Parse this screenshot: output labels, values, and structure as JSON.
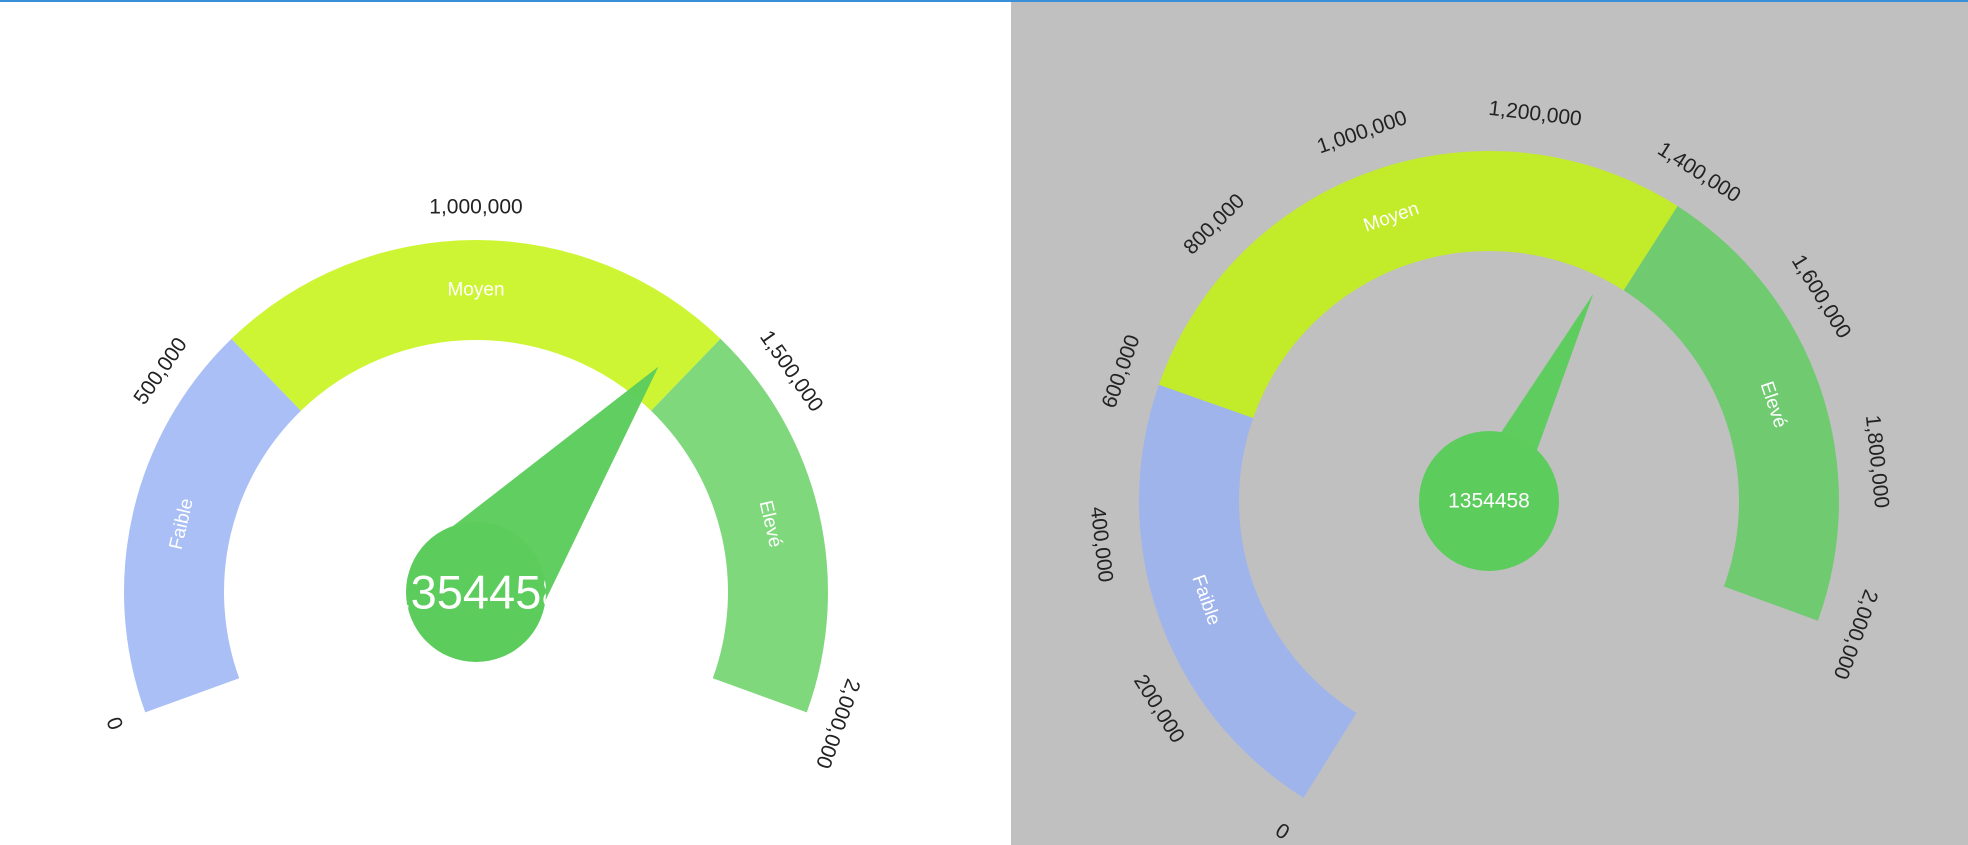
{
  "chart_data": [
    {
      "type": "gauge",
      "value": 1354458,
      "value_display": "1354458",
      "min": 0,
      "max": 2000000,
      "start_angle": 250,
      "end_angle": 110,
      "tick_labels": [
        "0",
        "500,000",
        "1,000,000",
        "1,500,000",
        "2,000,000"
      ],
      "tick_values": [
        0,
        500000,
        1000000,
        1500000,
        2000000
      ],
      "bands": [
        {
          "label": "Faible",
          "from": 0,
          "to": 600000,
          "color": "#aabff6"
        },
        {
          "label": "Moyen",
          "from": 600000,
          "to": 1400000,
          "color": "#cdf534"
        },
        {
          "label": "Elevé",
          "from": 1400000,
          "to": 2000000,
          "color": "#7fd87c"
        }
      ],
      "needle_color": "#5ccc5c",
      "background": "#ffffff"
    },
    {
      "type": "gauge",
      "value": 1354458,
      "value_display": "1354458",
      "min": 0,
      "max": 2000000,
      "start_angle": 212,
      "end_angle": 110,
      "tick_labels": [
        "0",
        "200,000",
        "400,000",
        "600,000",
        "800,000",
        "1,000,000",
        "1,200,000",
        "1,400,000",
        "1,600,000",
        "1,800,000",
        "2,000,000"
      ],
      "tick_values": [
        0,
        200000,
        400000,
        600000,
        800000,
        1000000,
        1200000,
        1400000,
        1600000,
        1800000,
        2000000
      ],
      "bands": [
        {
          "label": "Faible",
          "from": 0,
          "to": 600000,
          "color": "#a0b4ec"
        },
        {
          "label": "Moyen",
          "from": 600000,
          "to": 1400000,
          "color": "#c2eb29"
        },
        {
          "label": "Elevé",
          "from": 1400000,
          "to": 2000000,
          "color": "#70ca70"
        }
      ],
      "needle_color": "#5ccc5c",
      "background": "#c0c0c0"
    }
  ]
}
